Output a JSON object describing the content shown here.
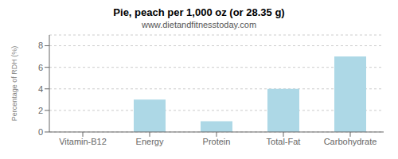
{
  "chart_data": {
    "type": "bar",
    "title": "Pie, peach per 1,000 oz (or 28.35 g)",
    "subtitle": "www.dietandfitnesstoday.com",
    "categories": [
      "Vitamin-B12",
      "Energy",
      "Protein",
      "Total-Fat",
      "Carbohydrate"
    ],
    "values": [
      0,
      3,
      1,
      4,
      7
    ],
    "color": "#add8e6",
    "ylabel": "Percentage of RDH (%)",
    "ylim": [
      0,
      9
    ],
    "yticks": [
      0,
      2,
      4,
      6,
      8
    ],
    "grid": true
  }
}
